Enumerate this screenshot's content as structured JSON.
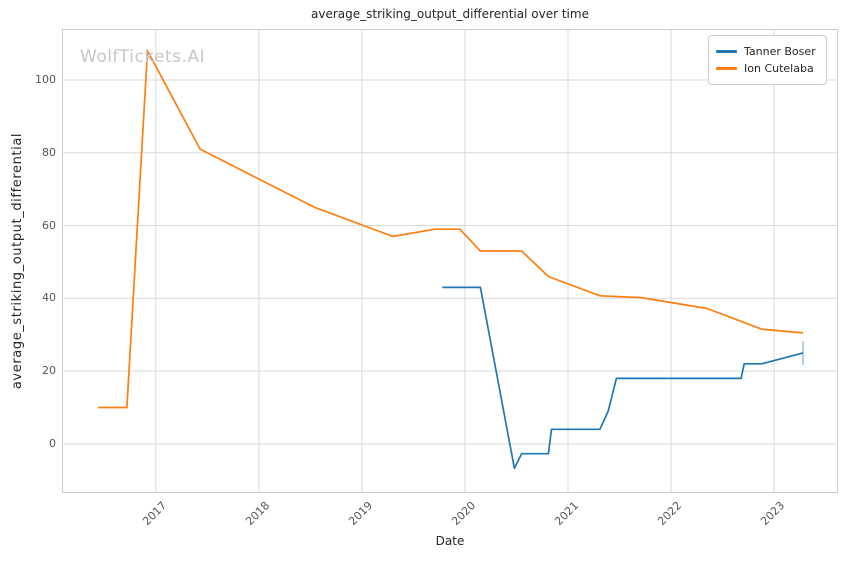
{
  "figure": {
    "title": "average_striking_output_differential over time",
    "watermark": "WolfTickets.AI",
    "xlabel": "Date",
    "ylabel": "average_striking_output_differential"
  },
  "legend": {
    "entries": [
      {
        "label": "Tanner Boser",
        "color": "#1f77b4"
      },
      {
        "label": "Ion Cutelaba",
        "color": "#ff7f0e"
      }
    ]
  },
  "chart_data": {
    "type": "line",
    "title": "average_striking_output_differential over time",
    "xlabel": "Date",
    "ylabel": "average_striking_output_differential",
    "xlim": [
      2016.09,
      2023.62
    ],
    "ylim": [
      -13.5,
      114
    ],
    "x_ticks": [
      2017,
      2018,
      2019,
      2020,
      2021,
      2022,
      2023
    ],
    "y_ticks": [
      0,
      20,
      40,
      60,
      80,
      100
    ],
    "grid": true,
    "legend_position": "upper right",
    "series": [
      {
        "name": "Tanner Boser",
        "color": "#1f77b4",
        "x": [
          2019.78,
          2020.15,
          2020.48,
          2020.55,
          2020.81,
          2020.84,
          2021.31,
          2021.39,
          2021.47,
          2022.68,
          2022.71,
          2022.88,
          2023.28
        ],
        "y": [
          43,
          43,
          -6.7,
          -2.7,
          -2.7,
          4,
          4,
          9,
          18,
          18,
          22,
          22,
          25
        ]
      },
      {
        "name": "Ion Cutelaba",
        "color": "#ff7f0e",
        "x": [
          2016.44,
          2016.72,
          2016.92,
          2017.43,
          2018.54,
          2019.3,
          2019.71,
          2019.95,
          2020.15,
          2020.55,
          2020.81,
          2021.31,
          2021.71,
          2022.35,
          2022.88,
          2023.28
        ],
        "y": [
          10,
          10,
          108,
          81,
          65,
          57,
          59,
          59,
          53,
          53,
          46,
          40.7,
          40.2,
          37.2,
          31.5,
          30.5
        ]
      }
    ],
    "error_bars": [
      {
        "series": "Tanner Boser",
        "x": 2023.28,
        "y_low": 21.7,
        "y_high": 28.2,
        "color": "#1f77b4",
        "opacity": 0.45
      }
    ]
  },
  "colors": {
    "grid": "#d9d9d9",
    "spine": "#cccccc",
    "tick_label": "#555555",
    "text": "#262626",
    "watermark": "#c7c7c7",
    "background": "#ffffff"
  }
}
